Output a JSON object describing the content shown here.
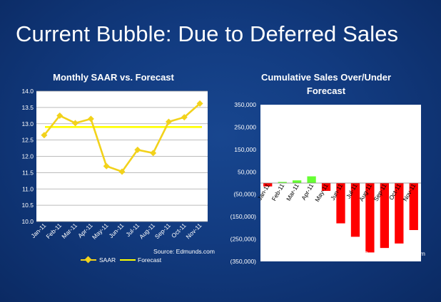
{
  "slide": {
    "title": "Current Bubble: Due to Deferred Sales"
  },
  "colors": {
    "background": "#123b80",
    "saar_line": "#f2d21b",
    "forecast_line": "#ffff00",
    "negative_bar": "#ff0000",
    "positive_bar": "#66ff33"
  },
  "chart_data": [
    {
      "type": "line",
      "title": "Monthly SAAR vs. Forecast",
      "categories": [
        "Jan-11",
        "Feb-11",
        "Mar-11",
        "Apr-11",
        "May-11",
        "Jun-11",
        "Jul-11",
        "Aug-11",
        "Sep-11",
        "Oct-11",
        "Nov-11"
      ],
      "series": [
        {
          "name": "SAAR",
          "values": [
            12.65,
            13.25,
            13.02,
            13.15,
            11.7,
            11.53,
            12.2,
            12.1,
            13.06,
            13.2,
            13.62
          ]
        },
        {
          "name": "Forecast",
          "values": [
            12.9,
            12.9,
            12.9,
            12.9,
            12.9,
            12.9,
            12.9,
            12.9,
            12.9,
            12.9,
            12.9
          ]
        }
      ],
      "ylim": [
        10.0,
        14.0
      ],
      "yticks": [
        "14.0",
        "13.5",
        "13.0",
        "12.5",
        "12.0",
        "11.5",
        "11.0",
        "10.5",
        "10.0"
      ],
      "grid": true,
      "legend": [
        "SAAR",
        "Forecast"
      ],
      "source": "Source: Edmunds.com"
    },
    {
      "type": "bar",
      "title_lines": [
        "Cumulative Sales Over/Under",
        "Forecast"
      ],
      "categories": [
        "Jan-11",
        "Feb-11",
        "Mar-11",
        "Apr-11",
        "May-11",
        "Jun-11",
        "Jul-11",
        "Aug-11",
        "Sep-11",
        "Oct-11",
        "Nov-11"
      ],
      "values": [
        -15000,
        5000,
        12000,
        30000,
        -35000,
        -180000,
        -240000,
        -310000,
        -290000,
        -270000,
        -210000
      ],
      "ylim": [
        -350000,
        350000
      ],
      "yticks": [
        "350,000",
        "250,000",
        "150,000",
        "50,000",
        "(50,000)",
        "(150,000)",
        "(250,000)",
        "(350,000)"
      ],
      "source": "Source: Edmunds.com"
    }
  ]
}
